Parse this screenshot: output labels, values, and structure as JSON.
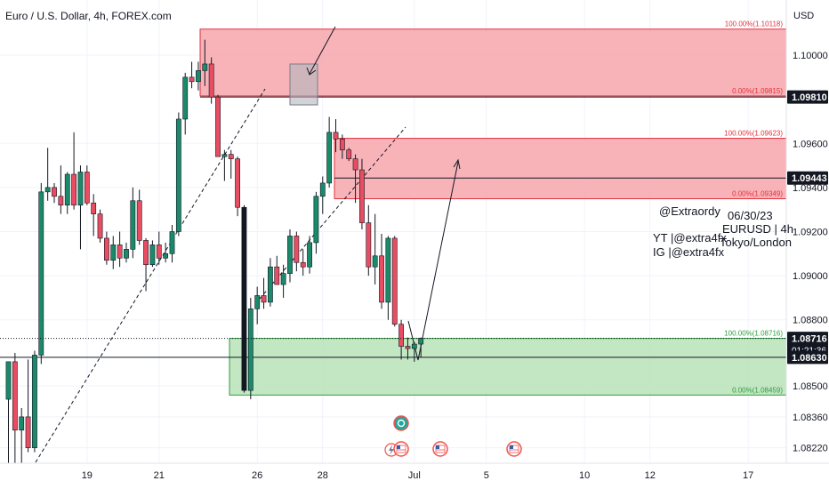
{
  "header": {
    "title": "Euro / U.S. Dollar, 4h, FOREX.com",
    "currency": "USD"
  },
  "chart_data": {
    "type": "candlestick",
    "symbol": "EURUSD",
    "timeframe": "4h",
    "ylim": [
      1.0815,
      1.1025
    ],
    "y_ticks": [
      "1.10000",
      "1.09600",
      "1.09400",
      "1.09200",
      "1.09000",
      "1.08800",
      "1.08500",
      "1.08360",
      "1.08220"
    ],
    "y_tick_values": [
      1.1,
      1.096,
      1.094,
      1.092,
      1.09,
      1.088,
      1.085,
      1.0836,
      1.0822
    ],
    "x_ticks": [
      "19",
      "21",
      "26",
      "28",
      "Jul",
      "5",
      "10",
      "12",
      "17"
    ],
    "x_tick_index": [
      12,
      23,
      38,
      48,
      62,
      73,
      88,
      98,
      113
    ],
    "candles": [
      {
        "o": 1.0844,
        "h": 1.0861,
        "l": 1.0815,
        "c": 1.0861
      },
      {
        "o": 1.0861,
        "h": 1.0865,
        "l": 1.0815,
        "c": 1.083
      },
      {
        "o": 1.083,
        "h": 1.084,
        "l": 1.0815,
        "c": 1.0836
      },
      {
        "o": 1.0836,
        "h": 1.0862,
        "l": 1.082,
        "c": 1.0822
      },
      {
        "o": 1.0822,
        "h": 1.0866,
        "l": 1.082,
        "c": 1.0864
      },
      {
        "o": 1.0864,
        "h": 1.0942,
        "l": 1.086,
        "c": 1.0938
      },
      {
        "o": 1.0938,
        "h": 1.0958,
        "l": 1.0934,
        "c": 1.094
      },
      {
        "o": 1.094,
        "h": 1.0942,
        "l": 1.0933,
        "c": 1.0936
      },
      {
        "o": 1.0936,
        "h": 1.095,
        "l": 1.0928,
        "c": 1.0932
      },
      {
        "o": 1.0932,
        "h": 1.0947,
        "l": 1.0928,
        "c": 1.0946
      },
      {
        "o": 1.0946,
        "h": 1.0965,
        "l": 1.093,
        "c": 1.0932
      },
      {
        "o": 1.0932,
        "h": 1.095,
        "l": 1.0912,
        "c": 1.0947
      },
      {
        "o": 1.0947,
        "h": 1.095,
        "l": 1.0932,
        "c": 1.0933
      },
      {
        "o": 1.0933,
        "h": 1.0937,
        "l": 1.0918,
        "c": 1.0928
      },
      {
        "o": 1.0928,
        "h": 1.093,
        "l": 1.0915,
        "c": 1.0917
      },
      {
        "o": 1.0917,
        "h": 1.092,
        "l": 1.0905,
        "c": 1.0907
      },
      {
        "o": 1.0907,
        "h": 1.0918,
        "l": 1.0903,
        "c": 1.0914
      },
      {
        "o": 1.0914,
        "h": 1.092,
        "l": 1.0904,
        "c": 1.0908
      },
      {
        "o": 1.0908,
        "h": 1.0915,
        "l": 1.0906,
        "c": 1.0912
      },
      {
        "o": 1.0912,
        "h": 1.094,
        "l": 1.0908,
        "c": 1.0934
      },
      {
        "o": 1.0934,
        "h": 1.0939,
        "l": 1.0914,
        "c": 1.0916
      },
      {
        "o": 1.0916,
        "h": 1.0917,
        "l": 1.0893,
        "c": 1.0905
      },
      {
        "o": 1.0905,
        "h": 1.0916,
        "l": 1.0904,
        "c": 1.0914
      },
      {
        "o": 1.0914,
        "h": 1.092,
        "l": 1.0905,
        "c": 1.0908
      },
      {
        "o": 1.0908,
        "h": 1.0915,
        "l": 1.0906,
        "c": 1.091
      },
      {
        "o": 1.091,
        "h": 1.0923,
        "l": 1.0906,
        "c": 1.092
      },
      {
        "o": 1.092,
        "h": 1.0974,
        "l": 1.0918,
        "c": 1.0971
      },
      {
        "o": 1.0971,
        "h": 1.0992,
        "l": 1.0964,
        "c": 1.099
      },
      {
        "o": 1.099,
        "h": 1.0997,
        "l": 1.0985,
        "c": 1.0988
      },
      {
        "o": 1.0988,
        "h": 1.0997,
        "l": 1.0984,
        "c": 1.0993
      },
      {
        "o": 1.0993,
        "h": 1.1007,
        "l": 1.0986,
        "c": 1.0996
      },
      {
        "o": 1.0996,
        "h": 1.0999,
        "l": 1.0978,
        "c": 1.0981
      },
      {
        "o": 1.0981,
        "h": 1.0982,
        "l": 1.0954,
        "c": 1.0954
      },
      {
        "o": 1.0954,
        "h": 1.0957,
        "l": 1.0943,
        "c": 1.0955
      },
      {
        "o": 1.0955,
        "h": 1.0957,
        "l": 1.0944,
        "c": 1.0953
      },
      {
        "o": 1.0953,
        "h": 1.0954,
        "l": 1.0927,
        "c": 1.0931
      },
      {
        "o": 1.0931,
        "h": 1.0932,
        "l": 1.0847,
        "c": 1.0848
      },
      {
        "o": 1.0848,
        "h": 1.089,
        "l": 1.0844,
        "c": 1.0885
      },
      {
        "o": 1.0885,
        "h": 1.0895,
        "l": 1.0878,
        "c": 1.0891
      },
      {
        "o": 1.0891,
        "h": 1.0899,
        "l": 1.0885,
        "c": 1.0888
      },
      {
        "o": 1.0888,
        "h": 1.0908,
        "l": 1.0886,
        "c": 1.0904
      },
      {
        "o": 1.0904,
        "h": 1.0909,
        "l": 1.0896,
        "c": 1.0896
      },
      {
        "o": 1.0896,
        "h": 1.0905,
        "l": 1.089,
        "c": 1.0901
      },
      {
        "o": 1.0901,
        "h": 1.0921,
        "l": 1.0897,
        "c": 1.0918
      },
      {
        "o": 1.0918,
        "h": 1.092,
        "l": 1.0902,
        "c": 1.0906
      },
      {
        "o": 1.0906,
        "h": 1.0912,
        "l": 1.09,
        "c": 1.0904
      },
      {
        "o": 1.0904,
        "h": 1.0918,
        "l": 1.0901,
        "c": 1.0915
      },
      {
        "o": 1.0915,
        "h": 1.0938,
        "l": 1.091,
        "c": 1.0936
      },
      {
        "o": 1.0936,
        "h": 1.0945,
        "l": 1.0928,
        "c": 1.0942
      },
      {
        "o": 1.0942,
        "h": 1.0972,
        "l": 1.094,
        "c": 1.0965
      },
      {
        "o": 1.0965,
        "h": 1.0971,
        "l": 1.0956,
        "c": 1.0962
      },
      {
        "o": 1.0962,
        "h": 1.0964,
        "l": 1.0953,
        "c": 1.0957
      },
      {
        "o": 1.0957,
        "h": 1.0958,
        "l": 1.0952,
        "c": 1.0953
      },
      {
        "o": 1.0953,
        "h": 1.0955,
        "l": 1.0933,
        "c": 1.0948
      },
      {
        "o": 1.0948,
        "h": 1.0953,
        "l": 1.0921,
        "c": 1.0924
      },
      {
        "o": 1.0924,
        "h": 1.0932,
        "l": 1.09,
        "c": 1.0904
      },
      {
        "o": 1.0904,
        "h": 1.0928,
        "l": 1.0896,
        "c": 1.0909
      },
      {
        "o": 1.0909,
        "h": 1.0919,
        "l": 1.0885,
        "c": 1.0888
      },
      {
        "o": 1.0888,
        "h": 1.0918,
        "l": 1.088,
        "c": 1.0917
      },
      {
        "o": 1.0917,
        "h": 1.0918,
        "l": 1.0877,
        "c": 1.0878
      },
      {
        "o": 1.0878,
        "h": 1.088,
        "l": 1.0862,
        "c": 1.0868
      },
      {
        "o": 1.0868,
        "h": 1.0872,
        "l": 1.0862,
        "c": 1.0867
      },
      {
        "o": 1.0867,
        "h": 1.087,
        "l": 1.0861,
        "c": 1.0869
      },
      {
        "o": 1.0869,
        "h": 1.0872,
        "l": 1.0863,
        "c": 1.08716
      }
    ],
    "candle_x_index": [
      0,
      1,
      2,
      3,
      4,
      5,
      6,
      7,
      8,
      9,
      10,
      11,
      12,
      13,
      14,
      15,
      16,
      17,
      18,
      19,
      20,
      21,
      22,
      23,
      24,
      25,
      26,
      27,
      28,
      29,
      30,
      31,
      32,
      33,
      34,
      35,
      36,
      37,
      38,
      39,
      40,
      41,
      42,
      43,
      44,
      45,
      46,
      47,
      48,
      49,
      50,
      51,
      52,
      53,
      54,
      55,
      56,
      57,
      58,
      59,
      60,
      61,
      62,
      63
    ],
    "zones": [
      {
        "name": "supply-zone-top",
        "color": "#f7a6ad",
        "border": "#e0323c",
        "high": 1.10118,
        "low": 1.09815,
        "high_label": "100.00%(1.10118)",
        "low_label": "0.00%(1.09815)"
      },
      {
        "name": "supply-zone-mid",
        "color": "#f7a6ad",
        "border": "#e0323c",
        "high": 1.09623,
        "low": 1.09349,
        "high_label": "100.00%(1.09623)",
        "low_label": "0.00%(1.09349)"
      },
      {
        "name": "demand-zone",
        "color": "#b9e2b9",
        "border": "#2e9e3e",
        "high": 1.08716,
        "low": 1.08459,
        "high_label": "100.00%(1.08716)",
        "low_label": "0.00%(1.08459)"
      }
    ],
    "horizontal_levels": [
      1.0981,
      1.09443,
      1.0863
    ],
    "price_tags": [
      {
        "value": "1.09810",
        "price": 1.0981,
        "bg": "#131722",
        "fg": "#ffffff"
      },
      {
        "value": "1.09443",
        "price": 1.09443,
        "bg": "#131722",
        "fg": "#ffffff"
      },
      {
        "value": "1.08716",
        "sub": "01:21:36",
        "price": 1.08716,
        "bg": "#131722",
        "fg": "#ffffff"
      },
      {
        "value": "1.08630",
        "price": 1.0863,
        "bg": "#131722",
        "fg": "#ffffff"
      }
    ],
    "colors": {
      "up": "#26a69a",
      "down": "#ef5350",
      "up_body": "#1b8a6b",
      "down_body": "#e84d62",
      "bear_black": "#131722"
    }
  },
  "annotations": {
    "author": "@Extraordy",
    "date": "06/30/23",
    "pair_tf": "EURUSD | 4h",
    "session": "Tokyo/London",
    "yt": "YT |@extra4fx",
    "ig": "IG |@extra4fx"
  },
  "event_icons": [
    "currency-event-icon",
    "lightning-event-icon",
    "us-flag-event-icon",
    "us-flag-event-icon",
    "us-flag-event-icon"
  ]
}
